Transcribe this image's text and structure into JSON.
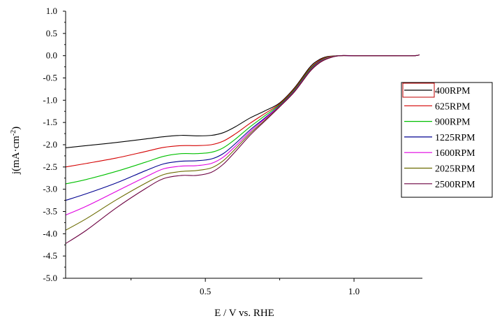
{
  "chart_data": {
    "type": "line",
    "title": "",
    "xlabel": "E / V vs. RHE",
    "ylabel_main": "j(mA·cm",
    "ylabel_sup": "-2",
    "ylabel_close": ")",
    "xlim": [
      0.03,
      1.23
    ],
    "ylim": [
      -5.0,
      1.0
    ],
    "x_ticks": [
      0.5,
      1.0
    ],
    "x_tick_labels": [
      "0.5",
      "1.0"
    ],
    "x_minor_ticks": [
      0.25,
      0.75
    ],
    "y_ticks": [
      1.0,
      0.5,
      0.0,
      -0.5,
      -1.0,
      -1.5,
      -2.0,
      -2.5,
      -3.0,
      -3.5,
      -4.0,
      -4.5,
      -5.0
    ],
    "y_tick_labels": [
      "1.0",
      "0.5",
      "0.0",
      "-0.5",
      "-1.0",
      "-1.5",
      "-2.0",
      "-2.5",
      "-3.0",
      "-3.5",
      "-4.0",
      "-4.5",
      "-5.0"
    ],
    "grid": false,
    "legend_position": "right",
    "series": [
      {
        "name": "400RPM",
        "color": "#000000",
        "x": [
          0.03,
          0.1,
          0.2,
          0.3,
          0.36,
          0.42,
          0.47,
          0.52,
          0.56,
          0.6,
          0.65,
          0.7,
          0.75,
          0.8,
          0.85,
          0.88,
          0.91,
          0.95,
          1.0,
          1.1,
          1.2,
          1.22
        ],
        "y": [
          -2.07,
          -2.02,
          -1.95,
          -1.87,
          -1.82,
          -1.79,
          -1.8,
          -1.79,
          -1.73,
          -1.6,
          -1.4,
          -1.24,
          -1.06,
          -0.72,
          -0.27,
          -0.1,
          -0.02,
          0.0,
          0.0,
          0.0,
          0.0,
          0.02
        ]
      },
      {
        "name": "625RPM",
        "color": "#d40000",
        "x": [
          0.03,
          0.1,
          0.2,
          0.3,
          0.36,
          0.42,
          0.47,
          0.52,
          0.56,
          0.6,
          0.65,
          0.7,
          0.75,
          0.8,
          0.85,
          0.88,
          0.91,
          0.95,
          1.0,
          1.1,
          1.2,
          1.22
        ],
        "y": [
          -2.5,
          -2.42,
          -2.3,
          -2.15,
          -2.06,
          -2.02,
          -2.02,
          -2.0,
          -1.92,
          -1.76,
          -1.52,
          -1.3,
          -1.08,
          -0.74,
          -0.3,
          -0.12,
          -0.03,
          0.0,
          0.0,
          0.0,
          0.0,
          0.02
        ]
      },
      {
        "name": "900RPM",
        "color": "#00c000",
        "x": [
          0.03,
          0.1,
          0.2,
          0.3,
          0.36,
          0.42,
          0.47,
          0.52,
          0.56,
          0.6,
          0.65,
          0.7,
          0.75,
          0.8,
          0.85,
          0.88,
          0.91,
          0.95,
          1.0,
          1.1,
          1.2,
          1.22
        ],
        "y": [
          -2.88,
          -2.78,
          -2.6,
          -2.39,
          -2.26,
          -2.2,
          -2.2,
          -2.17,
          -2.07,
          -1.88,
          -1.6,
          -1.35,
          -1.1,
          -0.76,
          -0.32,
          -0.14,
          -0.04,
          0.0,
          0.0,
          0.0,
          0.0,
          0.02
        ]
      },
      {
        "name": "1225RPM",
        "color": "#000090",
        "x": [
          0.03,
          0.1,
          0.2,
          0.3,
          0.36,
          0.42,
          0.47,
          0.52,
          0.56,
          0.6,
          0.65,
          0.7,
          0.75,
          0.8,
          0.85,
          0.88,
          0.91,
          0.95,
          1.0,
          1.1,
          1.2,
          1.22
        ],
        "y": [
          -3.25,
          -3.1,
          -2.86,
          -2.58,
          -2.43,
          -2.37,
          -2.36,
          -2.32,
          -2.2,
          -1.98,
          -1.67,
          -1.4,
          -1.12,
          -0.78,
          -0.34,
          -0.15,
          -0.05,
          0.0,
          0.0,
          0.0,
          0.0,
          0.02
        ]
      },
      {
        "name": "1600RPM",
        "color": "#e000e0",
        "x": [
          0.03,
          0.1,
          0.2,
          0.3,
          0.36,
          0.42,
          0.47,
          0.52,
          0.56,
          0.6,
          0.65,
          0.7,
          0.75,
          0.8,
          0.85,
          0.88,
          0.91,
          0.95,
          1.0,
          1.1,
          1.2,
          1.22
        ],
        "y": [
          -3.58,
          -3.38,
          -3.05,
          -2.72,
          -2.54,
          -2.48,
          -2.47,
          -2.42,
          -2.28,
          -2.04,
          -1.71,
          -1.42,
          -1.13,
          -0.79,
          -0.35,
          -0.16,
          -0.05,
          0.0,
          0.0,
          0.0,
          0.0,
          0.02
        ]
      },
      {
        "name": "2025RPM",
        "color": "#6b6b00",
        "x": [
          0.03,
          0.1,
          0.2,
          0.3,
          0.36,
          0.42,
          0.47,
          0.52,
          0.56,
          0.6,
          0.65,
          0.7,
          0.75,
          0.8,
          0.85,
          0.88,
          0.91,
          0.95,
          1.0,
          1.1,
          1.2,
          1.22
        ],
        "y": [
          -3.92,
          -3.66,
          -3.24,
          -2.86,
          -2.67,
          -2.6,
          -2.58,
          -2.52,
          -2.36,
          -2.1,
          -1.75,
          -1.45,
          -1.14,
          -0.8,
          -0.36,
          -0.17,
          -0.06,
          0.0,
          0.0,
          0.0,
          0.0,
          0.02
        ]
      },
      {
        "name": "2500RPM",
        "color": "#6b0040",
        "x": [
          0.03,
          0.1,
          0.2,
          0.3,
          0.36,
          0.42,
          0.47,
          0.52,
          0.56,
          0.6,
          0.65,
          0.7,
          0.75,
          0.8,
          0.85,
          0.88,
          0.91,
          0.95,
          1.0,
          1.1,
          1.2,
          1.22
        ],
        "y": [
          -4.22,
          -3.92,
          -3.42,
          -2.98,
          -2.76,
          -2.69,
          -2.69,
          -2.62,
          -2.44,
          -2.16,
          -1.79,
          -1.47,
          -1.15,
          -0.81,
          -0.37,
          -0.18,
          -0.07,
          0.0,
          0.0,
          0.0,
          0.0,
          0.02
        ]
      }
    ]
  }
}
